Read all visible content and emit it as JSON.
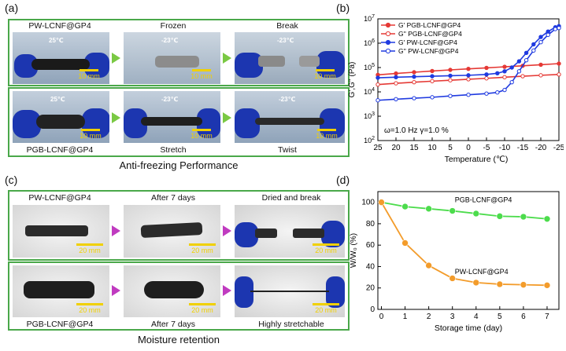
{
  "panels": {
    "a": "(a)",
    "b": "(b)",
    "c": "(c)",
    "d": "(d)"
  },
  "panel_a": {
    "row1": {
      "label": "PW-LCNF@GP4",
      "caption2": "Frozen",
      "caption3": "Break",
      "temp1": "25℃",
      "temp2": "-23℃",
      "temp3": "-23℃",
      "scale": "10 mm"
    },
    "row2": {
      "label": "PGB-LCNF@GP4",
      "caption2": "Stretch",
      "caption3": "Twist",
      "temp1": "25℃",
      "temp2": "-23℃",
      "temp3": "-23℃",
      "scale": "10 mm"
    },
    "caption": "Anti-freezing Performance"
  },
  "panel_c": {
    "row1": {
      "label": "PW-LCNF@GP4",
      "caption2": "After 7 days",
      "caption3": "Dried and break",
      "scale": "20 mm"
    },
    "row2": {
      "label": "PGB-LCNF@GP4",
      "caption2": "After 7 days",
      "caption3": "Highly stretchable",
      "scale": "20 mm"
    },
    "caption": "Moisture retention"
  },
  "colors": {
    "frame_green": "#4aa84a",
    "arrow_green": "#7ac943",
    "arrow_magenta": "#c03bc0",
    "red": "#e53935",
    "blue": "#1f3ae0",
    "green": "#4cdc4c",
    "orange": "#f39c2b"
  },
  "chart_data": [
    {
      "type": "line",
      "xlabel": "Temperature (℃)",
      "ylabel": "G',G'' (Pa)",
      "x_ticks": [
        "25",
        "20",
        "15",
        "10",
        "5",
        "0",
        "-5",
        "-10",
        "-15",
        "-20",
        "-25"
      ],
      "y_ticks": [
        "10^2",
        "10^3",
        "10^4",
        "10^5",
        "10^6",
        "10^7"
      ],
      "xlim": [
        25,
        -25
      ],
      "ylim": [
        100,
        10000000
      ],
      "y_scale": "log",
      "annotation": "ω=1.0 Hz   γ=1.0 %",
      "legend_position": "top-left",
      "series": [
        {
          "name": "G'  PGB-LCNF@GP4",
          "color": "#e53935",
          "marker": "filled-circle",
          "x": [
            25,
            20,
            15,
            10,
            5,
            0,
            -5,
            -10,
            -15,
            -20,
            -25
          ],
          "y": [
            50000,
            57000,
            64000,
            72000,
            80000,
            88000,
            97000,
            107000,
            118000,
            130000,
            145000
          ]
        },
        {
          "name": "G''  PGB-LCNF@GP4",
          "color": "#e53935",
          "marker": "open-circle",
          "x": [
            25,
            20,
            15,
            10,
            5,
            0,
            -5,
            -10,
            -15,
            -20,
            -25
          ],
          "y": [
            20000,
            22500,
            25000,
            27500,
            30000,
            33000,
            36000,
            40000,
            44000,
            48000,
            52000
          ]
        },
        {
          "name": "G'  PW-LCNF@GP4",
          "color": "#1f3ae0",
          "marker": "filled-circle",
          "x": [
            25,
            20,
            15,
            10,
            5,
            0,
            -5,
            -8,
            -10,
            -12,
            -14,
            -16,
            -18,
            -20,
            -22,
            -24,
            -25
          ],
          "y": [
            38000,
            40000,
            42000,
            44000,
            46000,
            48000,
            52000,
            58000,
            70000,
            100000,
            180000,
            400000,
            900000,
            1800000,
            3000000,
            4500000,
            5000000
          ]
        },
        {
          "name": "G''  PW-LCNF@GP4",
          "color": "#1f3ae0",
          "marker": "open-circle",
          "x": [
            25,
            20,
            15,
            10,
            5,
            0,
            -5,
            -8,
            -10,
            -12,
            -14,
            -16,
            -18,
            -20,
            -22,
            -24,
            -25
          ],
          "y": [
            4500,
            5000,
            5500,
            6000,
            6800,
            7600,
            8500,
            9500,
            12000,
            25000,
            70000,
            200000,
            500000,
            1100000,
            2200000,
            3800000,
            4200000
          ]
        }
      ]
    },
    {
      "type": "line",
      "xlabel": "Storage time (day)",
      "ylabel": "W/W₀ (%)",
      "x_ticks": [
        "0",
        "1",
        "2",
        "3",
        "4",
        "5",
        "6",
        "7"
      ],
      "y_ticks": [
        "0",
        "20",
        "40",
        "60",
        "80",
        "100"
      ],
      "xlim": [
        -0.15,
        7.5
      ],
      "ylim": [
        0,
        110
      ],
      "series": [
        {
          "name": "PGB-LCNF@GP4",
          "color": "#4cdc4c",
          "label": "PGB-LCNF@GP4",
          "x": [
            0,
            1,
            2,
            3,
            4,
            5,
            6,
            7
          ],
          "y": [
            100,
            96,
            94,
            92,
            89.5,
            87,
            86.5,
            84.5
          ]
        },
        {
          "name": "PW-LCNF@GP4",
          "color": "#f39c2b",
          "label": "PW-LCNF@GP4",
          "x": [
            0,
            1,
            2,
            3,
            4,
            5,
            6,
            7
          ],
          "y": [
            100,
            62,
            41,
            29,
            25,
            23.5,
            23,
            22.5
          ]
        }
      ]
    }
  ]
}
